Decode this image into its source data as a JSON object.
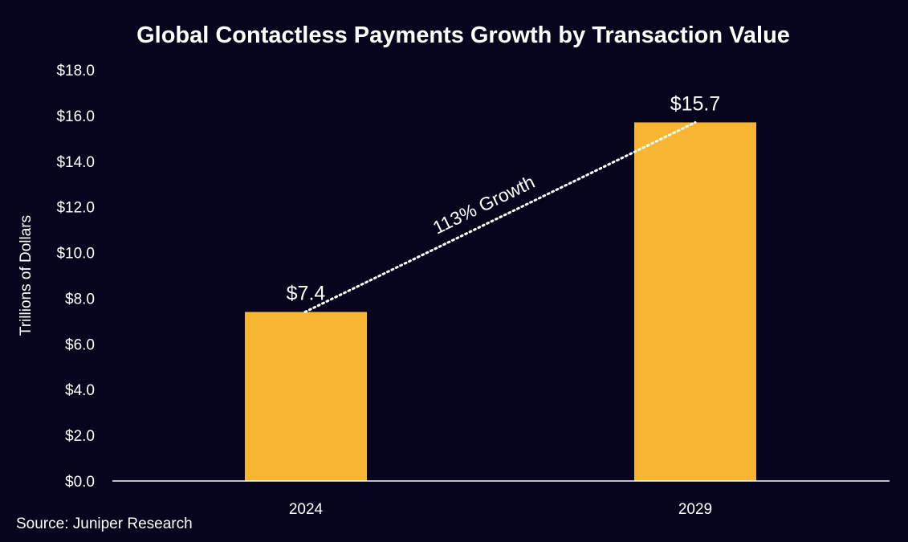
{
  "chart_data": {
    "type": "bar",
    "title": "Global Contactless Payments Growth by Transaction Value",
    "xlabel": "",
    "ylabel": "Trillions of Dollars",
    "categories": [
      "2024",
      "2029"
    ],
    "values": [
      7.4,
      15.7
    ],
    "value_labels": [
      "$7.4",
      "$15.7"
    ],
    "ylim": [
      0,
      18
    ],
    "y_ticks": [
      0,
      2,
      4,
      6,
      8,
      10,
      12,
      14,
      16,
      18
    ],
    "y_tick_labels": [
      "$0.0",
      "$2.0",
      "$4.0",
      "$6.0",
      "$8.0",
      "$10.0",
      "$12.0",
      "$14.0",
      "$16.0",
      "$18.0"
    ],
    "grid": false,
    "legend": "none",
    "annotation": "113% Growth",
    "source": "Source: Juniper Research",
    "colors": {
      "background": "#05061e",
      "bar": "#f8b531",
      "text": "#ffffff",
      "axis": "#ffffff"
    }
  }
}
